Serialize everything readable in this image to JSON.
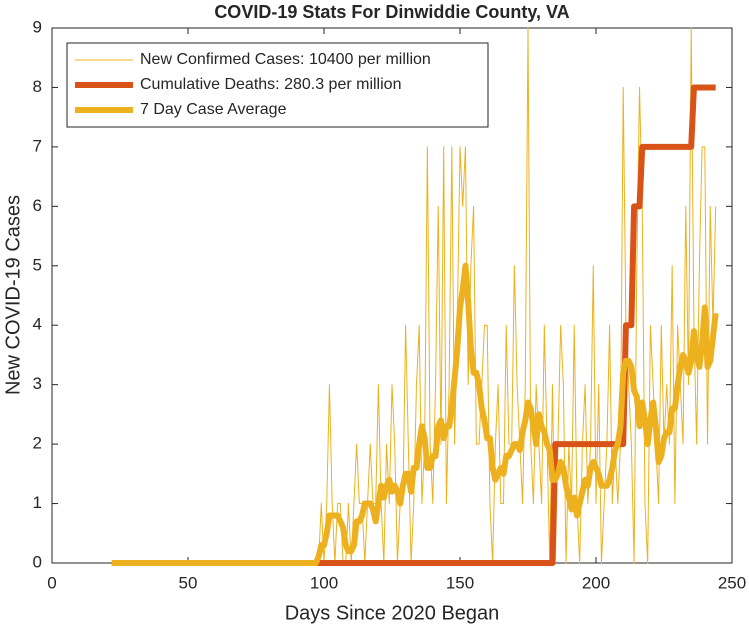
{
  "chart_data": {
    "type": "line",
    "title": "COVID-19 Stats For Dinwiddie County, VA",
    "xlabel": "Days Since 2020 Began",
    "ylabel": "New COVID-19 Cases",
    "xlim": [
      0,
      250
    ],
    "xticks": [
      0,
      50,
      100,
      150,
      200,
      250
    ],
    "ylim": [
      0,
      9
    ],
    "yticks": [
      0,
      1,
      2,
      3,
      4,
      5,
      6,
      7,
      8,
      9
    ],
    "grid": false,
    "legend": "northwest",
    "x": [
      22,
      23,
      24,
      25,
      26,
      27,
      28,
      29,
      30,
      31,
      32,
      33,
      34,
      35,
      36,
      37,
      38,
      39,
      40,
      41,
      42,
      43,
      44,
      45,
      46,
      47,
      48,
      49,
      50,
      51,
      52,
      53,
      54,
      55,
      56,
      57,
      58,
      59,
      60,
      61,
      62,
      63,
      64,
      65,
      66,
      67,
      68,
      69,
      70,
      71,
      72,
      73,
      74,
      75,
      76,
      77,
      78,
      79,
      80,
      81,
      82,
      83,
      84,
      85,
      86,
      87,
      88,
      89,
      90,
      91,
      92,
      93,
      94,
      95,
      96,
      97,
      98,
      99,
      100,
      101,
      102,
      103,
      104,
      105,
      106,
      107,
      108,
      109,
      110,
      111,
      112,
      113,
      114,
      115,
      116,
      117,
      118,
      119,
      120,
      121,
      122,
      123,
      124,
      125,
      126,
      127,
      128,
      129,
      130,
      131,
      132,
      133,
      134,
      135,
      136,
      137,
      138,
      139,
      140,
      141,
      142,
      143,
      144,
      145,
      146,
      147,
      148,
      149,
      150,
      151,
      152,
      153,
      154,
      155,
      156,
      157,
      158,
      159,
      160,
      161,
      162,
      163,
      164,
      165,
      166,
      167,
      168,
      169,
      170,
      171,
      172,
      173,
      174,
      175,
      176,
      177,
      178,
      179,
      180,
      181,
      182,
      183,
      184,
      185,
      186,
      187,
      188,
      189,
      190,
      191,
      192,
      193,
      194,
      195,
      196,
      197,
      198,
      199,
      200,
      201,
      202,
      203,
      204,
      205,
      206,
      207,
      208,
      209,
      210,
      211,
      212,
      213,
      214,
      215,
      216,
      217,
      218,
      219,
      220,
      221,
      222,
      223,
      224,
      225,
      226,
      227,
      228,
      229,
      230,
      231,
      232,
      233,
      234,
      235,
      236,
      237,
      238,
      239,
      240,
      241,
      242,
      243,
      244
    ],
    "series": [
      {
        "name": "New Confirmed Cases: 10400 per million",
        "color": "#EDB120",
        "width": 1,
        "values": [
          0,
          0,
          0,
          0,
          0,
          0,
          0,
          0,
          0,
          0,
          0,
          0,
          0,
          0,
          0,
          0,
          0,
          0,
          0,
          0,
          0,
          0,
          0,
          0,
          0,
          0,
          0,
          0,
          0,
          0,
          0,
          0,
          0,
          0,
          0,
          0,
          0,
          0,
          0,
          0,
          0,
          0,
          0,
          0,
          0,
          0,
          0,
          0,
          0,
          0,
          0,
          0,
          0,
          0,
          0,
          0,
          0,
          0,
          0,
          0,
          0,
          0,
          0,
          0,
          0,
          0,
          0,
          0,
          0,
          0,
          0,
          0,
          0,
          0,
          0,
          0,
          0,
          1,
          0,
          1,
          3,
          1,
          0,
          1,
          1,
          0,
          0,
          1,
          0,
          1,
          2,
          1,
          1,
          0,
          1,
          2,
          1,
          1,
          3,
          1,
          0,
          2,
          1,
          3,
          2,
          0,
          1,
          1,
          4,
          2,
          0,
          1,
          3,
          4,
          1,
          2,
          7,
          2,
          1,
          3,
          6,
          2,
          7,
          1,
          3,
          7,
          2,
          4,
          7,
          6,
          7,
          3,
          5,
          6,
          2,
          2,
          3,
          4,
          4,
          1,
          0,
          2,
          3,
          1,
          1,
          4,
          2,
          2,
          5,
          3,
          2,
          1,
          3,
          9,
          2,
          1,
          3,
          2,
          1,
          4,
          2,
          0,
          3,
          0,
          2,
          4,
          3,
          0,
          2,
          1,
          4,
          1,
          0,
          2,
          3,
          1,
          2,
          5,
          1,
          3,
          0,
          1,
          2,
          4,
          1,
          2,
          1,
          2,
          8,
          4,
          3,
          2,
          0,
          5,
          8,
          6,
          1,
          0,
          4,
          3,
          2,
          1,
          4,
          2,
          3,
          2,
          5,
          1,
          4,
          3,
          2,
          6,
          3,
          9,
          4,
          2,
          5,
          7,
          7,
          2,
          6,
          4,
          6
        ]
      },
      {
        "name": "Cumulative Deaths: 280.3 per million",
        "color": "#D95319",
        "width": 6,
        "values": [
          0,
          0,
          0,
          0,
          0,
          0,
          0,
          0,
          0,
          0,
          0,
          0,
          0,
          0,
          0,
          0,
          0,
          0,
          0,
          0,
          0,
          0,
          0,
          0,
          0,
          0,
          0,
          0,
          0,
          0,
          0,
          0,
          0,
          0,
          0,
          0,
          0,
          0,
          0,
          0,
          0,
          0,
          0,
          0,
          0,
          0,
          0,
          0,
          0,
          0,
          0,
          0,
          0,
          0,
          0,
          0,
          0,
          0,
          0,
          0,
          0,
          0,
          0,
          0,
          0,
          0,
          0,
          0,
          0,
          0,
          0,
          0,
          0,
          0,
          0,
          0,
          0,
          0,
          0,
          0,
          0,
          0,
          0,
          0,
          0,
          0,
          0,
          0,
          0,
          0,
          0,
          0,
          0,
          0,
          0,
          0,
          0,
          0,
          0,
          0,
          0,
          0,
          0,
          0,
          0,
          0,
          0,
          0,
          0,
          0,
          0,
          0,
          0,
          0,
          0,
          0,
          0,
          0,
          0,
          0,
          0,
          0,
          0,
          0,
          0,
          0,
          0,
          0,
          0,
          0,
          0,
          0,
          0,
          0,
          0,
          0,
          0,
          0,
          0,
          0,
          0,
          0,
          0,
          0,
          0,
          0,
          0,
          0,
          0,
          0,
          0,
          0,
          0,
          0,
          0,
          0,
          0,
          0,
          0,
          0,
          0,
          0,
          0,
          2,
          2,
          2,
          2,
          2,
          2,
          2,
          2,
          2,
          2,
          2,
          2,
          2,
          2,
          2,
          2,
          2,
          2,
          2,
          2,
          2,
          2,
          2,
          2,
          2,
          2,
          4,
          4,
          4,
          6,
          6,
          6,
          7,
          7,
          7,
          7,
          7,
          7,
          7,
          7,
          7,
          7,
          7,
          7,
          7,
          7,
          7,
          7,
          7,
          7,
          7,
          8,
          8,
          8,
          8,
          8,
          8,
          8,
          8,
          8
        ]
      },
      {
        "name": "7 Day Case Average",
        "color": "#EDB120",
        "width": 6,
        "values": [
          0,
          0,
          0,
          0,
          0,
          0,
          0,
          0,
          0,
          0,
          0,
          0,
          0,
          0,
          0,
          0,
          0,
          0,
          0,
          0,
          0,
          0,
          0,
          0,
          0,
          0,
          0,
          0,
          0,
          0,
          0,
          0,
          0,
          0,
          0,
          0,
          0,
          0,
          0,
          0,
          0,
          0,
          0,
          0,
          0,
          0,
          0,
          0,
          0,
          0,
          0,
          0,
          0,
          0,
          0,
          0,
          0,
          0,
          0,
          0,
          0,
          0,
          0,
          0,
          0,
          0,
          0,
          0,
          0,
          0,
          0,
          0,
          0,
          0,
          0,
          0,
          0.1,
          0.3,
          0.3,
          0.5,
          0.8,
          0.8,
          0.8,
          0.8,
          0.7,
          0.6,
          0.3,
          0.2,
          0.2,
          0.3,
          0.7,
          0.7,
          0.8,
          1,
          1,
          1,
          0.9,
          0.7,
          1,
          1.3,
          1.1,
          1.3,
          1.4,
          1.2,
          1.3,
          1.2,
          1,
          1.3,
          1.5,
          1.5,
          1.2,
          1.6,
          1.6,
          2,
          2.3,
          2.1,
          1.6,
          1.6,
          1.8,
          1.8,
          2.3,
          2.4,
          2.1,
          2.3,
          2.3,
          2.6,
          3.1,
          3.6,
          4.3,
          4.6,
          5,
          4.4,
          3.6,
          3.2,
          3.2,
          3,
          2.6,
          2.4,
          2.1,
          2.1,
          1.6,
          1.4,
          1.5,
          1.6,
          1.5,
          1.8,
          1.8,
          1.9,
          2,
          2,
          1.9,
          2.2,
          2.4,
          2.7,
          2.6,
          2.3,
          2,
          2.5,
          2.3,
          2.2,
          2,
          1.9,
          1.4,
          1.4,
          1.5,
          1.7,
          1.6,
          1.3,
          1.1,
          0.9,
          1.1,
          0.8,
          1,
          1.2,
          1.4,
          1.3,
          1.6,
          1.7,
          1.6,
          1.5,
          1.3,
          1.3,
          1.3,
          1.4,
          1.6,
          1.9,
          2,
          2.3,
          3.2,
          3.4,
          3.4,
          3.3,
          2.9,
          2.8,
          2.3,
          2.7,
          2.4,
          2,
          2.4,
          2.7,
          2.3,
          1.7,
          1.8,
          2.1,
          2.2,
          2.2,
          2.6,
          2.6,
          3,
          3.3,
          3.5,
          3.4,
          3.2,
          3.4,
          3.9,
          3.5,
          3.3,
          3.7,
          4.3,
          3.3,
          3.4,
          3.8,
          4.2
        ]
      }
    ]
  }
}
